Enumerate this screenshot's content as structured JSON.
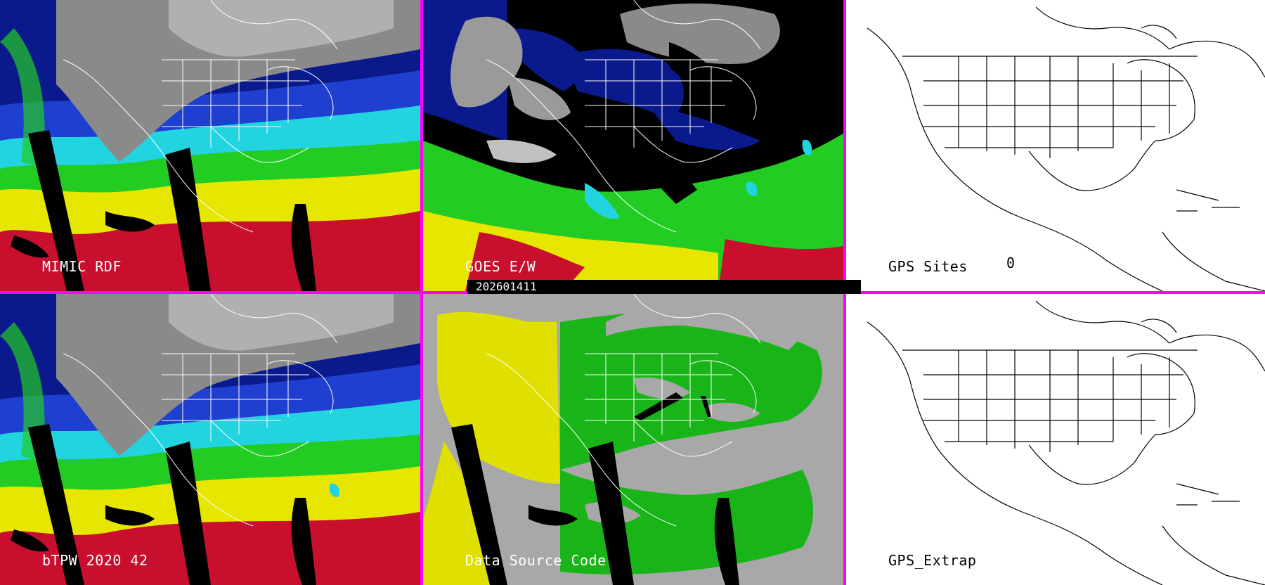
{
  "panels": {
    "top_left": {
      "label": "MIMIC RDF"
    },
    "top_middle": {
      "label": "GOES E/W"
    },
    "top_right": {
      "label": "GPS Sites",
      "count": "0"
    },
    "bottom_left": {
      "label": "bTPW 2020 42"
    },
    "bottom_middle": {
      "label": "Data Source Code"
    },
    "bottom_right": {
      "label": "GPS_Extrap"
    }
  },
  "timestamp": "202601411",
  "colors": {
    "separator": "#ff00ff",
    "grey_cloud": "#9a9a9a",
    "dark_blue": "#0a1a8c",
    "blue": "#1f3fd0",
    "cyan": "#22d4e0",
    "green": "#22cc22",
    "yellow": "#e6e600",
    "red": "#c8102e",
    "black": "#000000",
    "source_yellow": "#e0e000",
    "source_green": "#18b418",
    "source_grey": "#a8a8a8"
  }
}
